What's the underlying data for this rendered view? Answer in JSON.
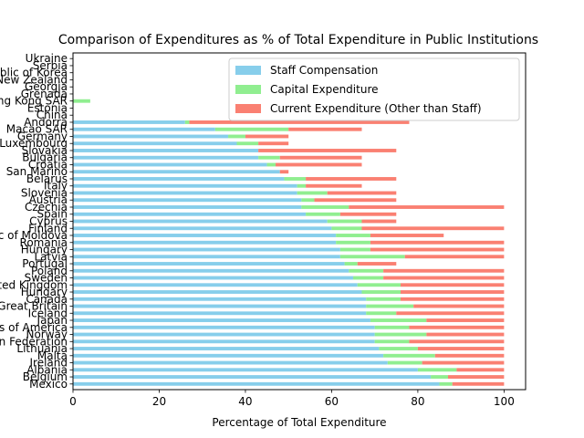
{
  "chart_data": {
    "type": "bar",
    "orientation": "horizontal",
    "stacked": true,
    "title": "Comparison of Expenditures as % of Total Expenditure in Public Institutions",
    "xlabel": "Percentage of Total Expenditure",
    "ylabel": "",
    "xlim": [
      0,
      105
    ],
    "xticks": [
      0,
      20,
      40,
      60,
      80,
      100
    ],
    "grid": false,
    "legend_position": "top-right",
    "categories": [
      "Mexico",
      "Belgium",
      "Albania",
      "Ireland",
      "Malta",
      "Lithuania",
      "Russian Federation",
      "Norway",
      "United States of America",
      "Japan",
      "Iceland",
      "United Kingdom of Great Britain",
      "Canada",
      "Hungary",
      "United Kingdom",
      "Sweden",
      "Poland",
      "Portugal",
      "Latvia",
      "Hungary",
      "Romania",
      "Republic of Moldova",
      "Finland",
      "Cyprus",
      "Spain",
      "Czechia",
      "Austria",
      "Slovenia",
      "Italy",
      "Belarus",
      "San Marino",
      "Croatia",
      "Bulgaria",
      "Slovakia",
      "Luxembourg",
      "Germany",
      "Macao SAR",
      "Andorra",
      "China",
      "Estonia",
      "Hong Kong SAR",
      "Grenada",
      "Georgia",
      "New Zealand",
      "Republic of Korea",
      "Serbia",
      "Ukraine"
    ],
    "series": [
      {
        "name": "Staff Compensation",
        "color": "#87CEEB",
        "values": [
          85,
          83,
          80,
          73,
          72,
          71,
          70,
          70,
          70,
          69,
          68,
          68,
          68,
          67,
          66,
          65,
          64,
          63,
          62,
          62,
          61,
          61,
          60,
          59,
          54,
          53,
          53,
          52,
          52,
          49,
          48,
          45,
          43,
          43,
          38,
          36,
          33,
          26,
          0,
          0,
          0,
          0,
          0,
          0,
          0,
          0,
          0
        ]
      },
      {
        "name": "Capital Expenditure",
        "color": "#90EE90",
        "values": [
          3,
          4,
          9,
          8,
          12,
          9,
          8,
          12,
          8,
          13,
          7,
          11,
          8,
          9,
          10,
          7,
          8,
          3,
          15,
          7,
          8,
          8,
          7,
          8,
          8,
          11,
          3,
          7,
          2,
          5,
          0,
          2,
          5,
          0,
          5,
          4,
          17,
          1,
          0,
          0,
          4,
          0,
          0,
          0,
          0,
          0,
          0
        ]
      },
      {
        "name": "Current Expenditure (Other than Staff)",
        "color": "#FA8072",
        "values": [
          12,
          13,
          11,
          19,
          16,
          20,
          22,
          18,
          22,
          18,
          25,
          21,
          24,
          24,
          24,
          28,
          28,
          9,
          23,
          31,
          31,
          17,
          33,
          8,
          13,
          36,
          19,
          16,
          13,
          21,
          2,
          20,
          19,
          32,
          7,
          10,
          17,
          51,
          0,
          0,
          0,
          0,
          0,
          0,
          0,
          0,
          0
        ]
      }
    ]
  }
}
